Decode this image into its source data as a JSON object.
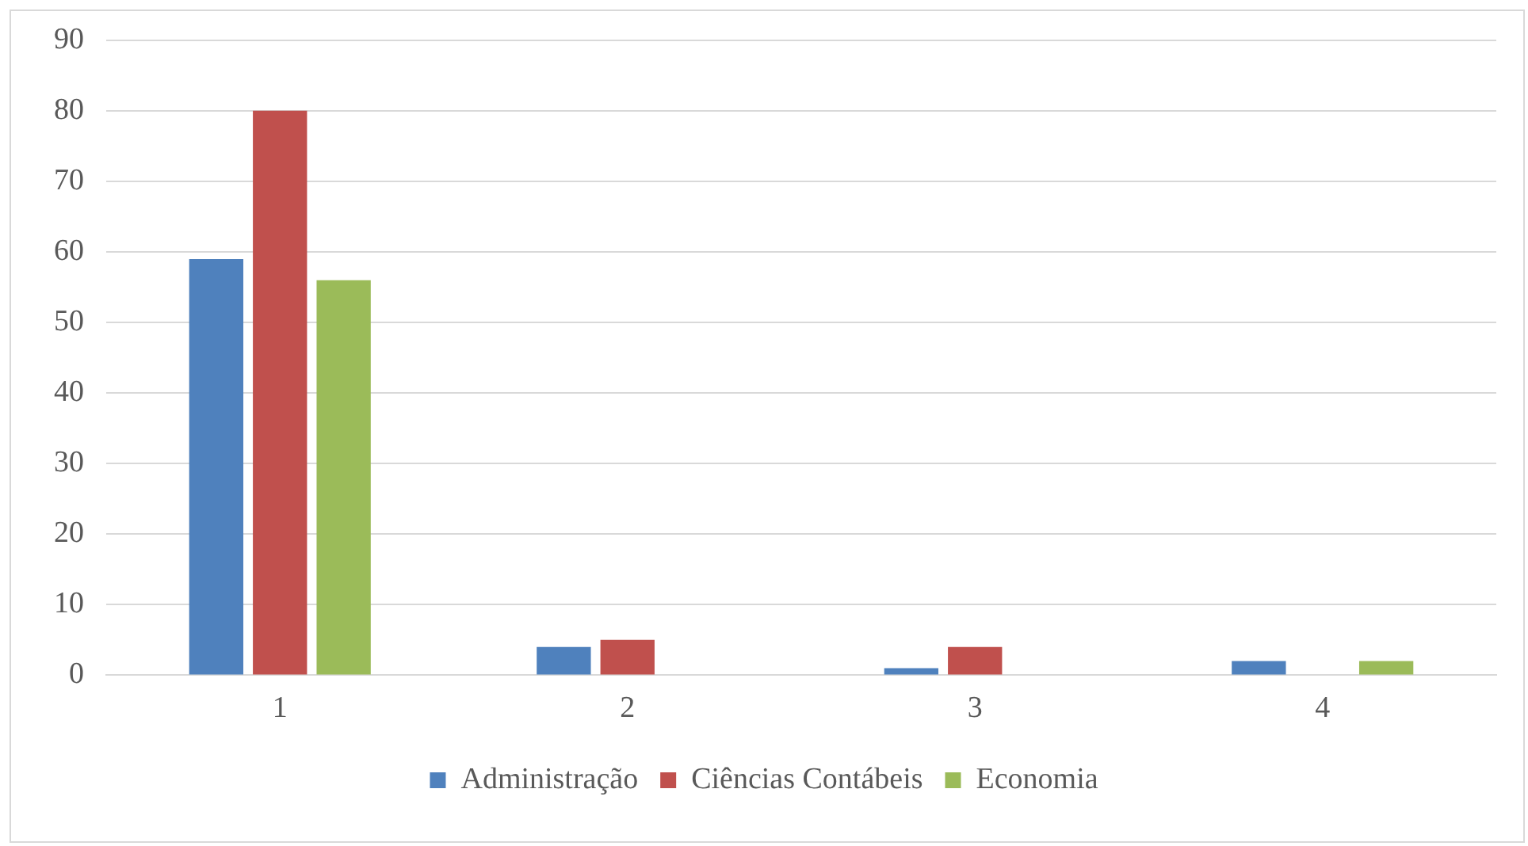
{
  "chart_data": {
    "type": "bar",
    "categories": [
      "1",
      "2",
      "3",
      "4"
    ],
    "series": [
      {
        "name": "Administração",
        "color": "#4f81bd",
        "values": [
          59,
          4,
          1,
          2
        ]
      },
      {
        "name": "Ciências Contábeis",
        "color": "#c0504d",
        "values": [
          80,
          5,
          4,
          0
        ]
      },
      {
        "name": "Economia",
        "color": "#9bbb59",
        "values": [
          56,
          0,
          0,
          2
        ]
      }
    ],
    "ylim": [
      0,
      90
    ],
    "yticks": [
      0,
      10,
      20,
      30,
      40,
      50,
      60,
      70,
      80,
      90
    ],
    "grid": "y",
    "legend": "bottom"
  }
}
